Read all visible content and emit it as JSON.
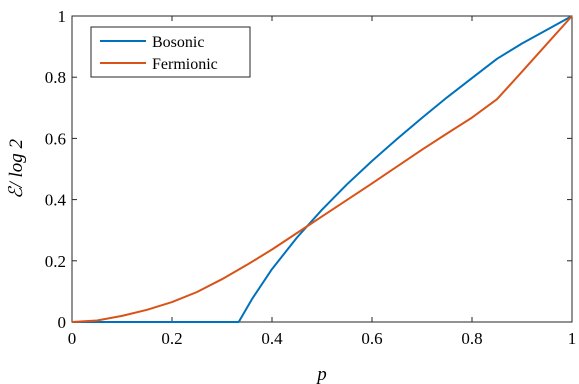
{
  "chart_data": {
    "type": "line",
    "xlabel": "p",
    "ylabel": "ℰ/ log 2",
    "xlim": [
      0,
      1
    ],
    "ylim": [
      0,
      1
    ],
    "xticks": [
      "0",
      "0.2",
      "0.4",
      "0.6",
      "0.8",
      "1"
    ],
    "yticks": [
      "0",
      "0.2",
      "0.4",
      "0.6",
      "0.8",
      "1"
    ],
    "grid": false,
    "legend_position": "top-left",
    "series": [
      {
        "name": "Bosonic",
        "color": "#0072BD",
        "x": [
          0,
          0.1,
          0.2,
          0.3,
          0.3333,
          0.36,
          0.4,
          0.45,
          0.5,
          0.55,
          0.6,
          0.65,
          0.7,
          0.75,
          0.8,
          0.85,
          0.9,
          0.95,
          1.0
        ],
        "y": [
          0,
          0,
          0,
          0,
          0,
          0.075,
          0.173,
          0.276,
          0.367,
          0.45,
          0.526,
          0.598,
          0.667,
          0.734,
          0.797,
          0.86,
          0.91,
          0.955,
          1.0
        ]
      },
      {
        "name": "Fermionic",
        "color": "#D95319",
        "x": [
          0,
          0.05,
          0.1,
          0.15,
          0.2,
          0.25,
          0.3,
          0.35,
          0.4,
          0.45,
          0.5,
          0.55,
          0.6,
          0.65,
          0.7,
          0.75,
          0.8,
          0.85,
          0.9,
          0.95,
          1.0
        ],
        "y": [
          0,
          0.005,
          0.02,
          0.04,
          0.065,
          0.098,
          0.14,
          0.187,
          0.237,
          0.291,
          0.345,
          0.399,
          0.453,
          0.508,
          0.563,
          0.616,
          0.668,
          0.728,
          0.818,
          0.909,
          1.0
        ]
      }
    ]
  }
}
